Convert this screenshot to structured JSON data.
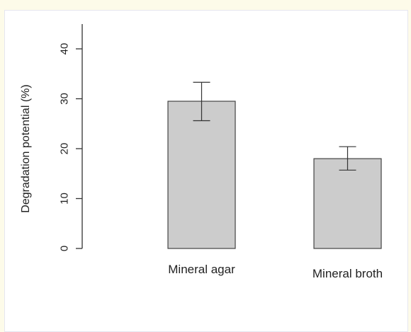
{
  "chart_data": {
    "type": "bar",
    "title": "",
    "xlabel": "",
    "ylabel": "Degradation potential (%)",
    "categories": [
      "Mineral agar",
      "Mineral broth"
    ],
    "values": [
      29.5,
      18.0
    ],
    "error_low": [
      25.6,
      15.7
    ],
    "error_high": [
      33.3,
      20.4
    ],
    "ylim": [
      0,
      45
    ],
    "yticks": [
      0,
      10,
      20,
      30,
      40
    ],
    "grid": false,
    "bar_color": "#cccccc",
    "bar_stroke": "#444444"
  }
}
